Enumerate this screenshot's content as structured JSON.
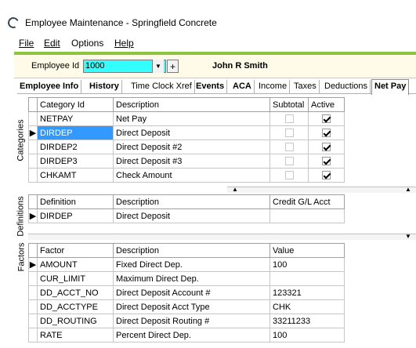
{
  "window": {
    "title": "Employee Maintenance - Springfield Concrete"
  },
  "menu": [
    "File",
    "Edit",
    "Options",
    "Help"
  ],
  "employee": {
    "label": "Employee Id",
    "id": "1000",
    "name": "John R Smith"
  },
  "tabs": [
    {
      "label": "Employee Info",
      "active": false
    },
    {
      "label": "History",
      "active": false
    },
    {
      "label": "Time Clock Xref",
      "active": false
    },
    {
      "label": "Events",
      "active": false
    },
    {
      "label": "ACA",
      "active": false
    },
    {
      "label": "Income",
      "active": false
    },
    {
      "label": "Taxes",
      "active": false
    },
    {
      "label": "Deductions",
      "active": false
    },
    {
      "label": "Net Pay",
      "active": true
    }
  ],
  "categories": {
    "side_label": "Categories",
    "headers": [
      "Category Id",
      "Description",
      "Subtotal",
      "Active"
    ],
    "rows": [
      {
        "id": "NETPAY",
        "desc": "Net Pay",
        "subtotal": false,
        "active": true
      },
      {
        "id": "DIRDEP",
        "desc": "Direct Deposit",
        "subtotal": false,
        "active": true
      },
      {
        "id": "DIRDEP2",
        "desc": "Direct Deposit #2",
        "subtotal": false,
        "active": true
      },
      {
        "id": "DIRDEP3",
        "desc": "Direct Deposit #3",
        "subtotal": false,
        "active": true
      },
      {
        "id": "CHKAMT",
        "desc": "Check Amount",
        "subtotal": false,
        "active": true
      }
    ],
    "selected_index": 1
  },
  "definitions": {
    "side_label": "Definitions",
    "headers": [
      "Definition",
      "Description",
      "Credit G/L Acct"
    ],
    "rows": [
      {
        "def": "DIRDEP",
        "desc": "Direct Deposit",
        "gl": ""
      }
    ]
  },
  "factors": {
    "side_label": "Factors",
    "headers": [
      "Factor",
      "Description",
      "Value"
    ],
    "rows": [
      {
        "factor": "AMOUNT",
        "desc": "Fixed Direct Dep.",
        "value": "100"
      },
      {
        "factor": "CUR_LIMIT",
        "desc": "Maximum Direct Dep.",
        "value": ""
      },
      {
        "factor": "DD_ACCT_NO",
        "desc": "Direct Deposit Account #",
        "value": "123321"
      },
      {
        "factor": "DD_ACCTYPE",
        "desc": "Direct Deposit Acct Type",
        "value": "CHK"
      },
      {
        "factor": "DD_ROUTING",
        "desc": "Direct Deposit Routing #",
        "value": "33211233"
      },
      {
        "factor": "RATE",
        "desc": "Percent Direct Dep.",
        "value": "100"
      }
    ]
  }
}
